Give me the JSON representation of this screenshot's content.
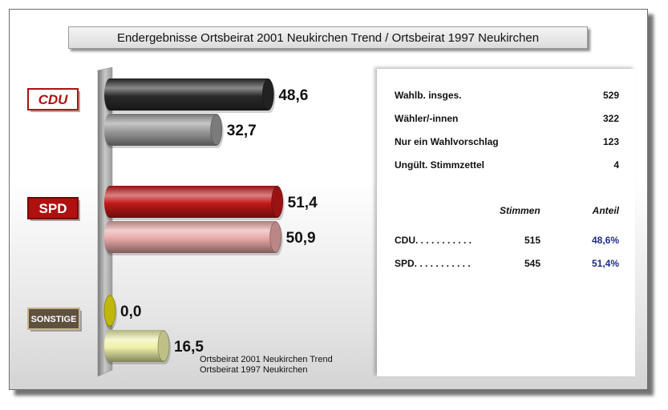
{
  "title": "Endergebnisse Ortsbeirat 2001 Neukirchen Trend / Ortsbeirat 1997 Neukirchen",
  "parties": [
    {
      "label": "CDU",
      "icon": "cdu-logo-icon",
      "bg": "#ffffff",
      "fg": "#b01010",
      "border": "#b01010"
    },
    {
      "label": "SPD",
      "icon": "spd-logo-icon",
      "bg": "#b01010",
      "fg": "#ffffff",
      "border": "#7a0000"
    },
    {
      "label": "SONSTIGE",
      "icon": "sonstige-logo-icon",
      "bg": "#5e5140",
      "fg": "#ffffff",
      "border": "#c8b58a"
    }
  ],
  "chart_data": {
    "type": "bar",
    "orientation": "horizontal",
    "categories": [
      "CDU",
      "SPD",
      "SONSTIGE"
    ],
    "series": [
      {
        "name": "Ortsbeirat 2001 Neukirchen Trend",
        "values": [
          48.6,
          51.4,
          0.0
        ],
        "labels": [
          "48,6",
          "51,4",
          "0,0"
        ]
      },
      {
        "name": "Ortsbeirat 1997 Neukirchen",
        "values": [
          32.7,
          50.9,
          16.5
        ],
        "labels": [
          "32,7",
          "50,9",
          "16,5"
        ]
      }
    ],
    "colors": {
      "CDU": [
        "#2a2a2a",
        "#9a9a9a"
      ],
      "SPD": [
        "#c01818",
        "#e8a7a7"
      ],
      "SONSTIGE": [
        "#f0e60a",
        "#eef0a8"
      ]
    },
    "legend_position": "bottom"
  },
  "stats": [
    {
      "label": "Wahlb. insges.",
      "value": "529"
    },
    {
      "label": "Wähler/-innen",
      "value": "322"
    },
    {
      "label": "Nur ein  Wahlvorschlag",
      "value": "123"
    },
    {
      "label": "Ungült. Stimmzettel",
      "value": "4"
    }
  ],
  "results_header": {
    "votes": "Stimmen",
    "share": "Anteil"
  },
  "results": [
    {
      "party": "CDU. . . . . . . . . . .",
      "votes": "515",
      "share": "48,6%"
    },
    {
      "party": "SPD. . . . . . . . . . .",
      "votes": "545",
      "share": "51,4%"
    }
  ]
}
